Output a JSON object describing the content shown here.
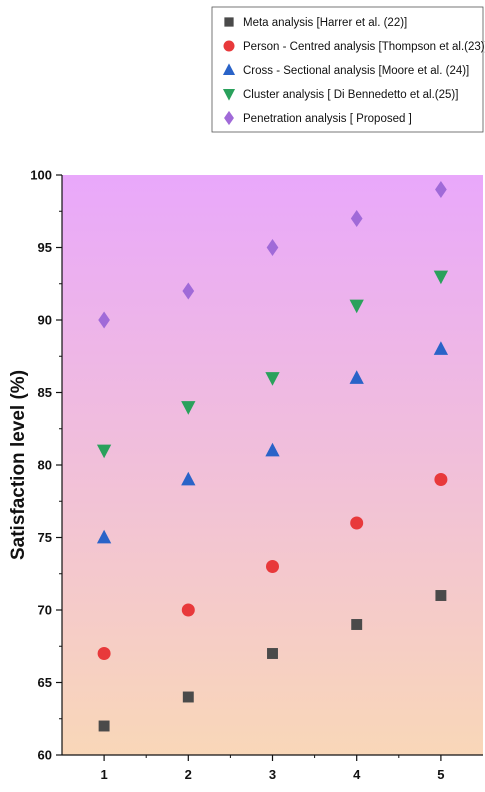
{
  "chart_data": {
    "type": "scatter",
    "title": "",
    "xlabel": "",
    "ylabel": "Satisfaction level (%)",
    "x": [
      1,
      2,
      3,
      4,
      5
    ],
    "xlim": [
      0.5,
      5.5
    ],
    "ylim": [
      60,
      100
    ],
    "xticks": [
      "1",
      "2",
      "3",
      "4",
      "5"
    ],
    "yticks": [
      "60",
      "65",
      "70",
      "75",
      "80",
      "85",
      "90",
      "95",
      "100"
    ],
    "legend_position": "top-right",
    "grid": false,
    "background_gradient": [
      "#e9a8fb",
      "#f9d7b8"
    ],
    "series": [
      {
        "name": "Meta analysis [Harrer et al. (22)]",
        "marker": "square",
        "color": "#4a4a4a",
        "values": [
          62,
          64,
          67,
          69,
          71
        ]
      },
      {
        "name": "Person - Centred analysis [Thompson et al.(23)]",
        "marker": "circle",
        "color": "#e8393b",
        "values": [
          67,
          70,
          73,
          76,
          79
        ]
      },
      {
        "name": "Cross - Sectional analysis [Moore et al. (24)]",
        "marker": "triangle-up",
        "color": "#2a63c8",
        "values": [
          75,
          79,
          81,
          86,
          88
        ]
      },
      {
        "name": "Cluster analysis [ Di Bennedetto et al.(25)]",
        "marker": "triangle-down",
        "color": "#2aa15c",
        "values": [
          81,
          84,
          86,
          91,
          93
        ]
      },
      {
        "name": "Penetration analysis [ Proposed ]",
        "marker": "diamond",
        "color": "#a06ad8",
        "values": [
          90,
          92,
          95,
          97,
          99
        ]
      }
    ]
  }
}
